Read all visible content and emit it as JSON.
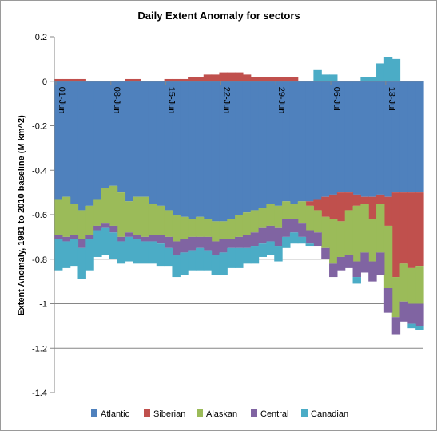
{
  "chart_data": {
    "type": "area",
    "stacked": true,
    "title": "Daily Extent Anomaly for sectors",
    "ylabel": "Extent Anomaly, 1981 to 2010 baseline  (M km^2)",
    "xlabel": "",
    "ylim": [
      -1.4,
      0.2
    ],
    "y_ticks": [
      0.2,
      0,
      -0.2,
      -0.4,
      -0.6,
      -0.8,
      -1,
      -1.2,
      -1.4
    ],
    "y_tick_labels": [
      "0.2",
      "0",
      "-0.2",
      "-0.4",
      "-0.6",
      "-0.8",
      "-1",
      "-1.2",
      "-1.4"
    ],
    "grid": "horizontal at -0.8, -1, -1.2",
    "legend_position": "bottom",
    "x_ticks": [
      {
        "label": "01-Jun",
        "day_index": 0
      },
      {
        "label": "08-Jun",
        "day_index": 7
      },
      {
        "label": "15-Jun",
        "day_index": 14
      },
      {
        "label": "22-Jun",
        "day_index": 21
      },
      {
        "label": "29-Jun",
        "day_index": 28
      },
      {
        "label": "06-Jul",
        "day_index": 35
      },
      {
        "label": "13-Jul",
        "day_index": 42
      }
    ],
    "series": [
      {
        "name": "Atlantic",
        "color": "#4F81BD",
        "values": [
          -0.53,
          -0.52,
          -0.55,
          -0.58,
          -0.56,
          -0.53,
          -0.48,
          -0.47,
          -0.5,
          -0.54,
          -0.52,
          -0.52,
          -0.55,
          -0.56,
          -0.58,
          -0.6,
          -0.61,
          -0.62,
          -0.61,
          -0.62,
          -0.63,
          -0.63,
          -0.62,
          -0.6,
          -0.59,
          -0.58,
          -0.57,
          -0.55,
          -0.56,
          -0.54,
          -0.55,
          -0.54,
          -0.54,
          -0.53,
          -0.52,
          -0.51,
          -0.5,
          -0.5,
          -0.51,
          -0.52,
          -0.52,
          -0.51,
          -0.52,
          -0.5,
          -0.5,
          -0.5,
          -0.5
        ]
      },
      {
        "name": "Siberian",
        "color": "#C0504D",
        "values": [
          0.01,
          0.01,
          0.01,
          0.01,
          0.0,
          0.0,
          0.0,
          0.0,
          0.0,
          0.01,
          0.01,
          0.0,
          0.0,
          0.0,
          0.01,
          0.01,
          0.01,
          0.02,
          0.02,
          0.03,
          0.03,
          0.04,
          0.04,
          0.04,
          0.03,
          0.02,
          0.02,
          0.02,
          0.02,
          0.02,
          0.02,
          0.0,
          -0.02,
          -0.05,
          -0.09,
          -0.11,
          -0.13,
          -0.08,
          -0.05,
          -0.03,
          -0.1,
          -0.04,
          -0.13,
          -0.38,
          -0.32,
          -0.34,
          -0.33
        ]
      },
      {
        "name": "Alaskan",
        "color": "#9BBB59",
        "values": [
          -0.16,
          -0.18,
          -0.14,
          -0.13,
          -0.13,
          -0.12,
          -0.16,
          -0.18,
          -0.2,
          -0.14,
          -0.17,
          -0.18,
          -0.14,
          -0.13,
          -0.12,
          -0.12,
          -0.1,
          -0.08,
          -0.09,
          -0.08,
          -0.09,
          -0.08,
          -0.09,
          -0.1,
          -0.1,
          -0.1,
          -0.09,
          -0.1,
          -0.1,
          -0.08,
          -0.07,
          -0.1,
          -0.11,
          -0.1,
          -0.14,
          -0.2,
          -0.16,
          -0.2,
          -0.25,
          -0.22,
          -0.19,
          -0.22,
          -0.28,
          -0.18,
          -0.17,
          -0.16,
          -0.17
        ]
      },
      {
        "name": "Central",
        "color": "#8064A2",
        "values": [
          -0.02,
          -0.02,
          -0.02,
          -0.04,
          -0.02,
          -0.02,
          -0.02,
          -0.03,
          -0.02,
          -0.02,
          -0.02,
          -0.02,
          -0.03,
          -0.04,
          -0.05,
          -0.06,
          -0.06,
          -0.06,
          -0.05,
          -0.06,
          -0.06,
          -0.06,
          -0.04,
          -0.05,
          -0.06,
          -0.06,
          -0.07,
          -0.07,
          -0.08,
          -0.08,
          -0.06,
          -0.06,
          -0.06,
          -0.06,
          -0.05,
          -0.06,
          -0.06,
          -0.06,
          -0.07,
          -0.09,
          -0.09,
          -0.1,
          -0.11,
          -0.08,
          -0.09,
          -0.09,
          -0.1
        ]
      },
      {
        "name": "Canadian",
        "color": "#4BACC6",
        "values": [
          -0.14,
          -0.12,
          -0.12,
          -0.14,
          -0.14,
          -0.12,
          -0.12,
          -0.12,
          -0.1,
          -0.11,
          -0.11,
          -0.1,
          -0.1,
          -0.1,
          -0.08,
          -0.1,
          -0.1,
          -0.09,
          -0.1,
          -0.09,
          -0.09,
          -0.1,
          -0.09,
          -0.09,
          -0.07,
          -0.08,
          -0.06,
          -0.06,
          -0.07,
          -0.05,
          -0.05,
          -0.03,
          -0.01,
          0.05,
          0.03,
          0.03,
          0.0,
          0.0,
          -0.03,
          0.02,
          0.02,
          0.08,
          0.11,
          0.1,
          0.0,
          -0.02,
          -0.02
        ]
      }
    ]
  }
}
